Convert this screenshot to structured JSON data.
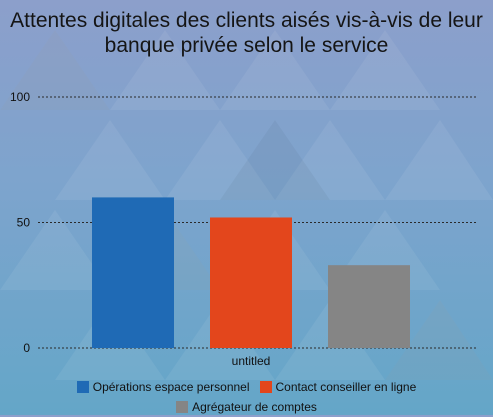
{
  "chart_data": {
    "type": "bar",
    "title": "Attentes digitales des clients aisés vis-à-vis de leur banque privée selon le service",
    "categories": [
      "untitled"
    ],
    "series": [
      {
        "name": "Opérations espace personnel",
        "values": [
          60
        ],
        "color": "#1f6ab5"
      },
      {
        "name": "Contact conseiller en ligne",
        "values": [
          52
        ],
        "color": "#e3461c"
      },
      {
        "name": "Agrégateur de comptes",
        "values": [
          33
        ],
        "color": "#858585"
      }
    ],
    "ylim": [
      0,
      100
    ],
    "yticks": [
      0,
      50,
      100
    ],
    "grid": true,
    "legend_position": "bottom"
  }
}
